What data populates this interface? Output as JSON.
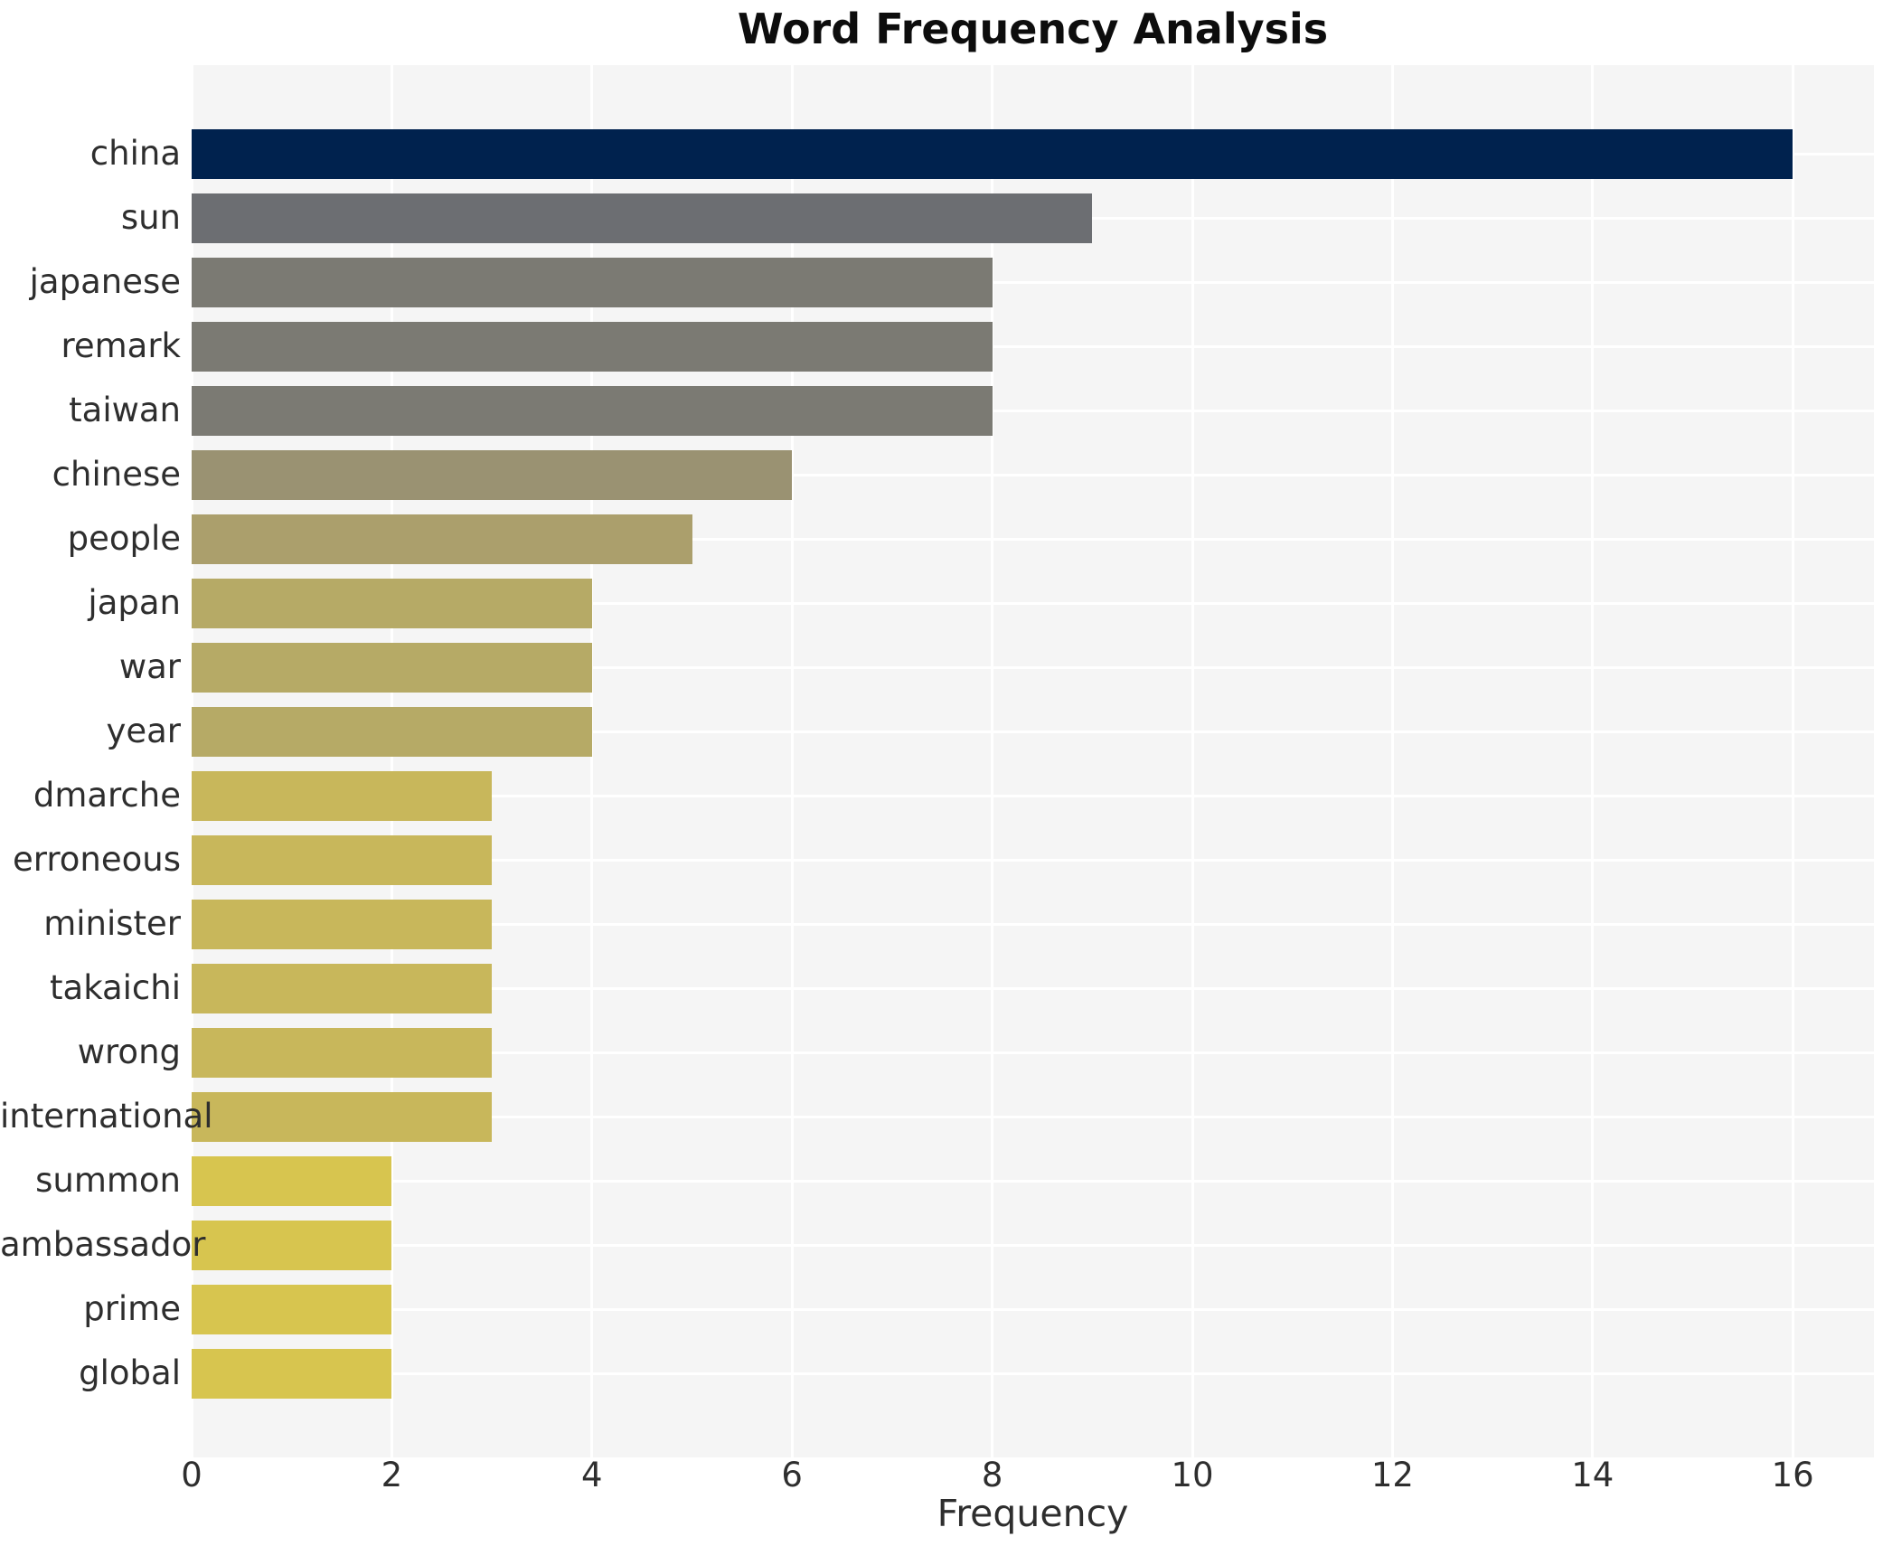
{
  "chart_data": {
    "type": "bar",
    "orientation": "horizontal",
    "title": "Word Frequency Analysis",
    "xlabel": "Frequency",
    "ylabel": "",
    "categories": [
      "china",
      "sun",
      "japanese",
      "remark",
      "taiwan",
      "chinese",
      "people",
      "japan",
      "war",
      "year",
      "dmarche",
      "erroneous",
      "minister",
      "takaichi",
      "wrong",
      "international",
      "summon",
      "ambassador",
      "prime",
      "global"
    ],
    "values": [
      16,
      9,
      8,
      8,
      8,
      6,
      5,
      4,
      4,
      4,
      3,
      3,
      3,
      3,
      3,
      3,
      2,
      2,
      2,
      2
    ],
    "bar_colors": [
      "#00224e",
      "#6c6e72",
      "#7b7a73",
      "#7b7a73",
      "#7b7a73",
      "#9a9272",
      "#ab9f6c",
      "#b6aa66",
      "#b6aa66",
      "#b6aa66",
      "#c8b75b",
      "#c8b75b",
      "#c8b75b",
      "#c8b75b",
      "#c8b75b",
      "#c8b75b",
      "#d7c54f",
      "#d7c54f",
      "#d7c54f",
      "#d7c54f"
    ],
    "x_ticks": [
      0,
      2,
      4,
      6,
      8,
      10,
      12,
      14,
      16
    ],
    "xlim": [
      0,
      16.8
    ],
    "grid": true,
    "legend": false,
    "plot_background": "#f5f5f5",
    "grid_color": "#ffffff",
    "text_color": "#2e2e2e",
    "title_color": "#0d0d0d"
  }
}
